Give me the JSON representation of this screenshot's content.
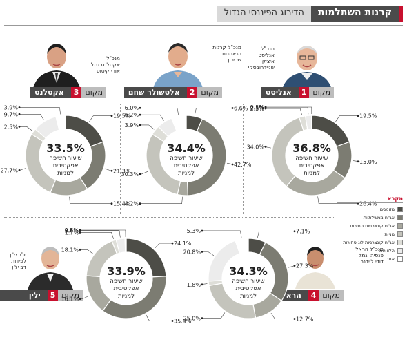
{
  "header": {
    "title": "קרנות השתלמות",
    "subtitle": "הדירוג הפיננסי הגדול"
  },
  "center_text": [
    "שיעור חשיפה",
    "אפקטיבית",
    "למניות"
  ],
  "legend": {
    "title": "מקרא",
    "items": [
      "מזומנים",
      "אג\"ח ממשלתיות",
      "אג\"ח קונצרניות סחירות",
      "מניות",
      "אג\"ח קונצרניות לא סחירות",
      "הלוואות",
      "אחר"
    ]
  },
  "colors": [
    "#4d4d47",
    "#7c7c72",
    "#a8a89e",
    "#c4c4bc",
    "#deded8",
    "#ececec",
    "#ffffff"
  ],
  "rank_label": "מקום",
  "funds": [
    {
      "rank": "1",
      "name": "אנליסט",
      "caption": [
        "מנכ\"ל",
        "אנליסט",
        "איציק",
        "שניידרובסקי"
      ]
    },
    {
      "rank": "2",
      "name": "אלטשולר שחם",
      "caption": [
        "מנכ\"ל קרנות",
        "הנאמנות",
        "שי ירון"
      ]
    },
    {
      "rank": "3",
      "name": "אקסלנס",
      "caption": [
        "מנכ\"ל",
        "אקסלנס גמל",
        "אורי קיסוס"
      ]
    },
    {
      "rank": "4",
      "name": "הראל",
      "caption": [
        "מנכ\"ל הראל",
        "פנסיה וגמל",
        "דודי ליידנר"
      ]
    },
    {
      "rank": "5",
      "name": "ילין לפידות",
      "caption": [
        "יו\"ר ילין",
        "לפידות",
        "דב ילין"
      ]
    }
  ],
  "chart_data": [
    {
      "type": "pie",
      "title": "אנליסט",
      "center": "36.8%",
      "categories": [
        "מזומנים",
        "אג\"ח ממשלתיות",
        "אג\"ח קונצרניות סחירות",
        "מניות",
        "אג\"ח קונצרניות לא סחירות",
        "הלוואות",
        "אחר"
      ],
      "values": [
        19.5,
        15.0,
        26.4,
        34.0,
        2.5,
        2.5,
        0.1
      ],
      "labels": [
        "19.5%",
        "15.0%",
        "26.4%",
        "34.0%",
        "2.5%",
        "2.5%",
        "0.1%"
      ]
    },
    {
      "type": "pie",
      "title": "אלטשולר שחם",
      "center": "34.4%",
      "categories": [
        "מזומנים",
        "אג\"ח ממשלתיות",
        "אג\"ח קונצרניות סחירות",
        "מניות",
        "אג\"ח קונצרניות לא סחירות",
        "הלוואות",
        "אחר"
      ],
      "values": [
        6.6,
        42.7,
        4.2,
        30.3,
        3.9,
        6.2,
        6.0
      ],
      "labels": [
        "6.6%",
        "42.7%",
        "4.2%",
        "30.3%",
        "3.9%",
        "6.2%",
        "6.0%"
      ]
    },
    {
      "type": "pie",
      "title": "אקסלנס",
      "center": "33.5%",
      "categories": [
        "מזומנים",
        "אג\"ח ממשלתיות",
        "אג\"ח קונצרניות סחירות",
        "מניות",
        "אג\"ח קונצרניות לא סחירות",
        "הלוואות",
        "אחר"
      ],
      "values": [
        19.5,
        21.3,
        15.4,
        27.7,
        2.5,
        9.7,
        3.9
      ],
      "labels": [
        "19.5%",
        "21.3%",
        "15.4%",
        "27.7%",
        "2.5%",
        "9.7%",
        "3.9%"
      ]
    },
    {
      "type": "pie",
      "title": "הראל",
      "center": "34.3%",
      "categories": [
        "מזומנים",
        "אג\"ח ממשלתיות",
        "אג\"ח קונצרניות סחירות",
        "מניות",
        "אג\"ח קונצרניות לא סחירות",
        "הלוואות",
        "אחר"
      ],
      "values": [
        7.1,
        27.3,
        12.7,
        25.0,
        1.8,
        20.8,
        5.3
      ],
      "labels": [
        "7.1%",
        "27.3%",
        "12.7%",
        "25.0%",
        "1.8%",
        "20.8%",
        "5.3%"
      ]
    },
    {
      "type": "pie",
      "title": "ילין לפידות",
      "center": "33.9%",
      "categories": [
        "מזומנים",
        "אג\"ח ממשלתיות",
        "אג\"ח קונצרניות סחירות",
        "מניות",
        "אג\"ח קונצרניות לא סחירות",
        "הלוואות",
        "אחר"
      ],
      "values": [
        24.1,
        35.9,
        16.1,
        18.1,
        1.7,
        3.6,
        0.5
      ],
      "labels": [
        "24.1%",
        "35.9%",
        "16.1%",
        "18.1%",
        "1.7%",
        "3.6%",
        "0.5%"
      ]
    }
  ]
}
